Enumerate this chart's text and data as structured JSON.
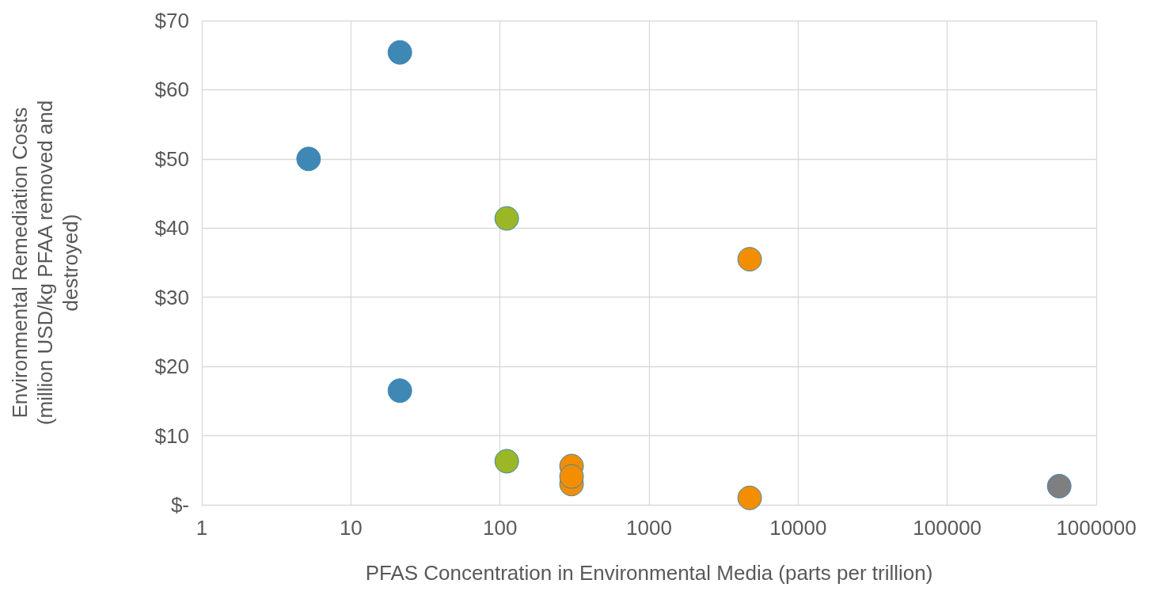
{
  "chart_data": {
    "type": "scatter",
    "xlabel": "PFAS Concentration in Environmental Media (parts per trillion)",
    "ylabel": "Environmental Remediation Costs\n(million USD/kg PFAA removed and\ndestroyed)",
    "log": "x",
    "grid": true,
    "marker": "circle",
    "xlim": [
      1,
      1000000
    ],
    "xticks": [
      1,
      10,
      100,
      1000,
      10000,
      100000,
      1000000
    ],
    "ylim": [
      0,
      70
    ],
    "yticks": [
      {
        "value": 0,
        "label": "$-"
      },
      {
        "value": 10,
        "label": "$10"
      },
      {
        "value": 20,
        "label": "$20"
      },
      {
        "value": 30,
        "label": "$30"
      },
      {
        "value": 40,
        "label": "$40"
      },
      {
        "value": 50,
        "label": "$50"
      },
      {
        "value": 60,
        "label": "$60"
      },
      {
        "value": 70,
        "label": "$70"
      }
    ],
    "series": [
      {
        "color": "#3f87b5",
        "x": [
          21.3,
          5.2,
          21.3
        ],
        "values": [
          65.4,
          50.0,
          16.5
        ]
      },
      {
        "color": "#9bb627",
        "x": [
          111,
          111
        ],
        "values": [
          41.4,
          6.3
        ]
      },
      {
        "color": "#f28e00",
        "x": [
          4730,
          302,
          302,
          4730,
          302
        ],
        "values": [
          35.5,
          5.6,
          3.0,
          1.0,
          4.1
        ]
      },
      {
        "color": "#7f7f7f",
        "x": [
          564000
        ],
        "values": [
          2.7
        ]
      }
    ]
  }
}
